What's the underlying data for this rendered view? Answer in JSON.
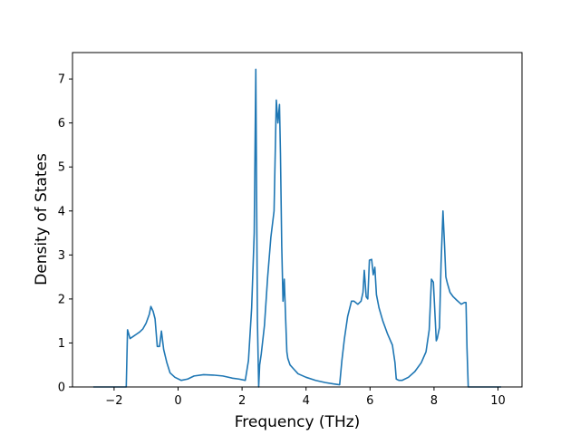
{
  "chart_data": {
    "type": "line",
    "title": "",
    "xlabel": "Frequency (THz)",
    "ylabel": "Density of States",
    "xlim": [
      -3.3,
      10.75
    ],
    "ylim": [
      0,
      7.6
    ],
    "xticks": [
      -2,
      0,
      2,
      4,
      6,
      8,
      10
    ],
    "yticks": [
      0,
      1,
      2,
      3,
      4,
      5,
      6,
      7
    ],
    "grid": false,
    "line_color": "#1f77b4",
    "series": [
      {
        "x": [
          -2.65,
          -1.7,
          -1.62,
          -1.58,
          -1.5,
          -1.4,
          -1.3,
          -1.2,
          -1.1,
          -1.0,
          -0.9,
          -0.85,
          -0.78,
          -0.72,
          -0.65,
          -0.58,
          -0.52,
          -0.45,
          -0.35,
          -0.25,
          -0.1,
          0.1,
          0.3,
          0.5,
          0.8,
          1.1,
          1.4,
          1.7,
          1.9,
          2.1,
          2.2,
          2.3,
          2.38,
          2.43,
          2.48,
          2.52,
          2.55,
          2.6,
          2.7,
          2.8,
          2.9,
          3.0,
          3.07,
          3.12,
          3.17,
          3.2,
          3.24,
          3.28,
          3.32,
          3.36,
          3.4,
          3.43,
          3.5,
          3.6,
          3.75,
          4.0,
          4.3,
          4.6,
          4.85,
          5.05,
          5.12,
          5.2,
          5.3,
          5.42,
          5.5,
          5.62,
          5.72,
          5.78,
          5.82,
          5.88,
          5.93,
          5.98,
          6.05,
          6.1,
          6.15,
          6.2,
          6.28,
          6.4,
          6.55,
          6.7,
          6.78,
          6.82,
          6.9,
          7.0,
          7.2,
          7.4,
          7.6,
          7.75,
          7.85,
          7.92,
          7.98,
          8.02,
          8.07,
          8.1,
          8.17,
          8.22,
          8.28,
          8.33,
          8.37,
          8.42,
          8.5,
          8.6,
          8.7,
          8.85,
          8.95,
          9.0,
          9.03,
          9.07,
          9.1,
          9.2,
          9.5,
          10.0,
          10.1
        ],
        "y": [
          0,
          0,
          0,
          1.3,
          1.1,
          1.15,
          1.2,
          1.25,
          1.32,
          1.45,
          1.65,
          1.83,
          1.72,
          1.55,
          0.92,
          0.92,
          1.27,
          0.85,
          0.55,
          0.32,
          0.22,
          0.15,
          0.18,
          0.25,
          0.28,
          0.27,
          0.25,
          0.2,
          0.18,
          0.15,
          0.6,
          1.8,
          3.5,
          7.22,
          1.5,
          0.0,
          0.5,
          0.75,
          1.4,
          2.5,
          3.4,
          4.0,
          6.52,
          6.0,
          6.42,
          5.3,
          3.2,
          1.95,
          2.45,
          1.6,
          0.8,
          0.65,
          0.5,
          0.42,
          0.3,
          0.22,
          0.15,
          0.1,
          0.07,
          0.05,
          0.6,
          1.1,
          1.6,
          1.95,
          1.95,
          1.88,
          1.95,
          2.15,
          2.65,
          2.05,
          2.0,
          2.88,
          2.9,
          2.55,
          2.72,
          2.1,
          1.8,
          1.5,
          1.2,
          0.95,
          0.55,
          0.18,
          0.15,
          0.15,
          0.22,
          0.35,
          0.55,
          0.8,
          1.3,
          2.45,
          2.38,
          1.8,
          1.05,
          1.1,
          1.35,
          2.8,
          4.0,
          3.2,
          2.5,
          2.35,
          2.15,
          2.05,
          1.98,
          1.88,
          1.92,
          1.92,
          0.9,
          0,
          0,
          0,
          0,
          0,
          0
        ]
      }
    ]
  }
}
